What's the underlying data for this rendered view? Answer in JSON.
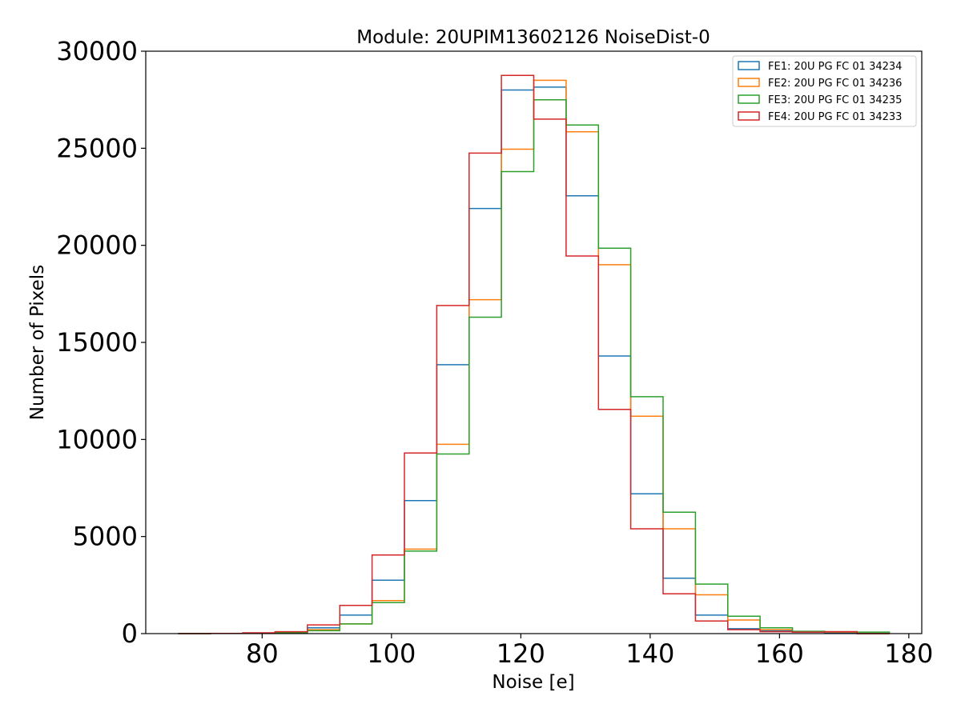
{
  "chart_data": {
    "type": "histogram-step",
    "title": "Module: 20UPIM13602126 NoiseDist-0",
    "xlabel": "Noise [e]",
    "ylabel": "Number of Pixels",
    "xlim": [
      62,
      182
    ],
    "ylim": [
      0,
      30000
    ],
    "xticks": [
      80,
      100,
      120,
      140,
      160,
      180
    ],
    "yticks": [
      0,
      5000,
      10000,
      15000,
      20000,
      25000,
      30000
    ],
    "xtick_labels": [
      "80",
      "100",
      "120",
      "140",
      "160",
      "180"
    ],
    "ytick_labels": [
      "0",
      "5000",
      "10000",
      "15000",
      "20000",
      "25000",
      "30000"
    ],
    "legend_position": "top-right",
    "bin_edges": [
      67,
      72,
      77,
      82,
      87,
      92,
      97,
      102,
      107,
      112,
      117,
      122,
      127,
      132,
      137,
      142,
      147,
      152,
      157,
      162,
      167,
      172,
      177
    ],
    "series": [
      {
        "name": "FE1: 20U PG FC 01 34234",
        "color": "#1f77b4",
        "values": [
          0,
          10,
          30,
          80,
          300,
          950,
          2750,
          6850,
          13850,
          21900,
          28000,
          28150,
          22550,
          14300,
          7200,
          2850,
          950,
          250,
          150,
          80,
          50,
          0
        ]
      },
      {
        "name": "FE2: 20U PG FC 01 34236",
        "color": "#ff7f0e",
        "values": [
          0,
          10,
          20,
          50,
          200,
          500,
          1700,
          4350,
          9750,
          17200,
          24950,
          28500,
          25850,
          19000,
          11200,
          5400,
          2000,
          700,
          200,
          100,
          80,
          0
        ]
      },
      {
        "name": "FE3: 20U PG FC 01 34235",
        "color": "#2ca02c",
        "values": [
          0,
          10,
          20,
          50,
          150,
          500,
          1600,
          4250,
          9250,
          16300,
          23800,
          27500,
          26200,
          19850,
          12200,
          6250,
          2550,
          900,
          300,
          120,
          100,
          80
        ]
      },
      {
        "name": "FE4: 20U PG FC 01 34233",
        "color": "#d62728",
        "values": [
          0,
          10,
          40,
          100,
          450,
          1450,
          4050,
          9300,
          16900,
          24750,
          28750,
          26500,
          19450,
          11550,
          5400,
          2050,
          650,
          200,
          100,
          80,
          100,
          0
        ]
      }
    ]
  }
}
